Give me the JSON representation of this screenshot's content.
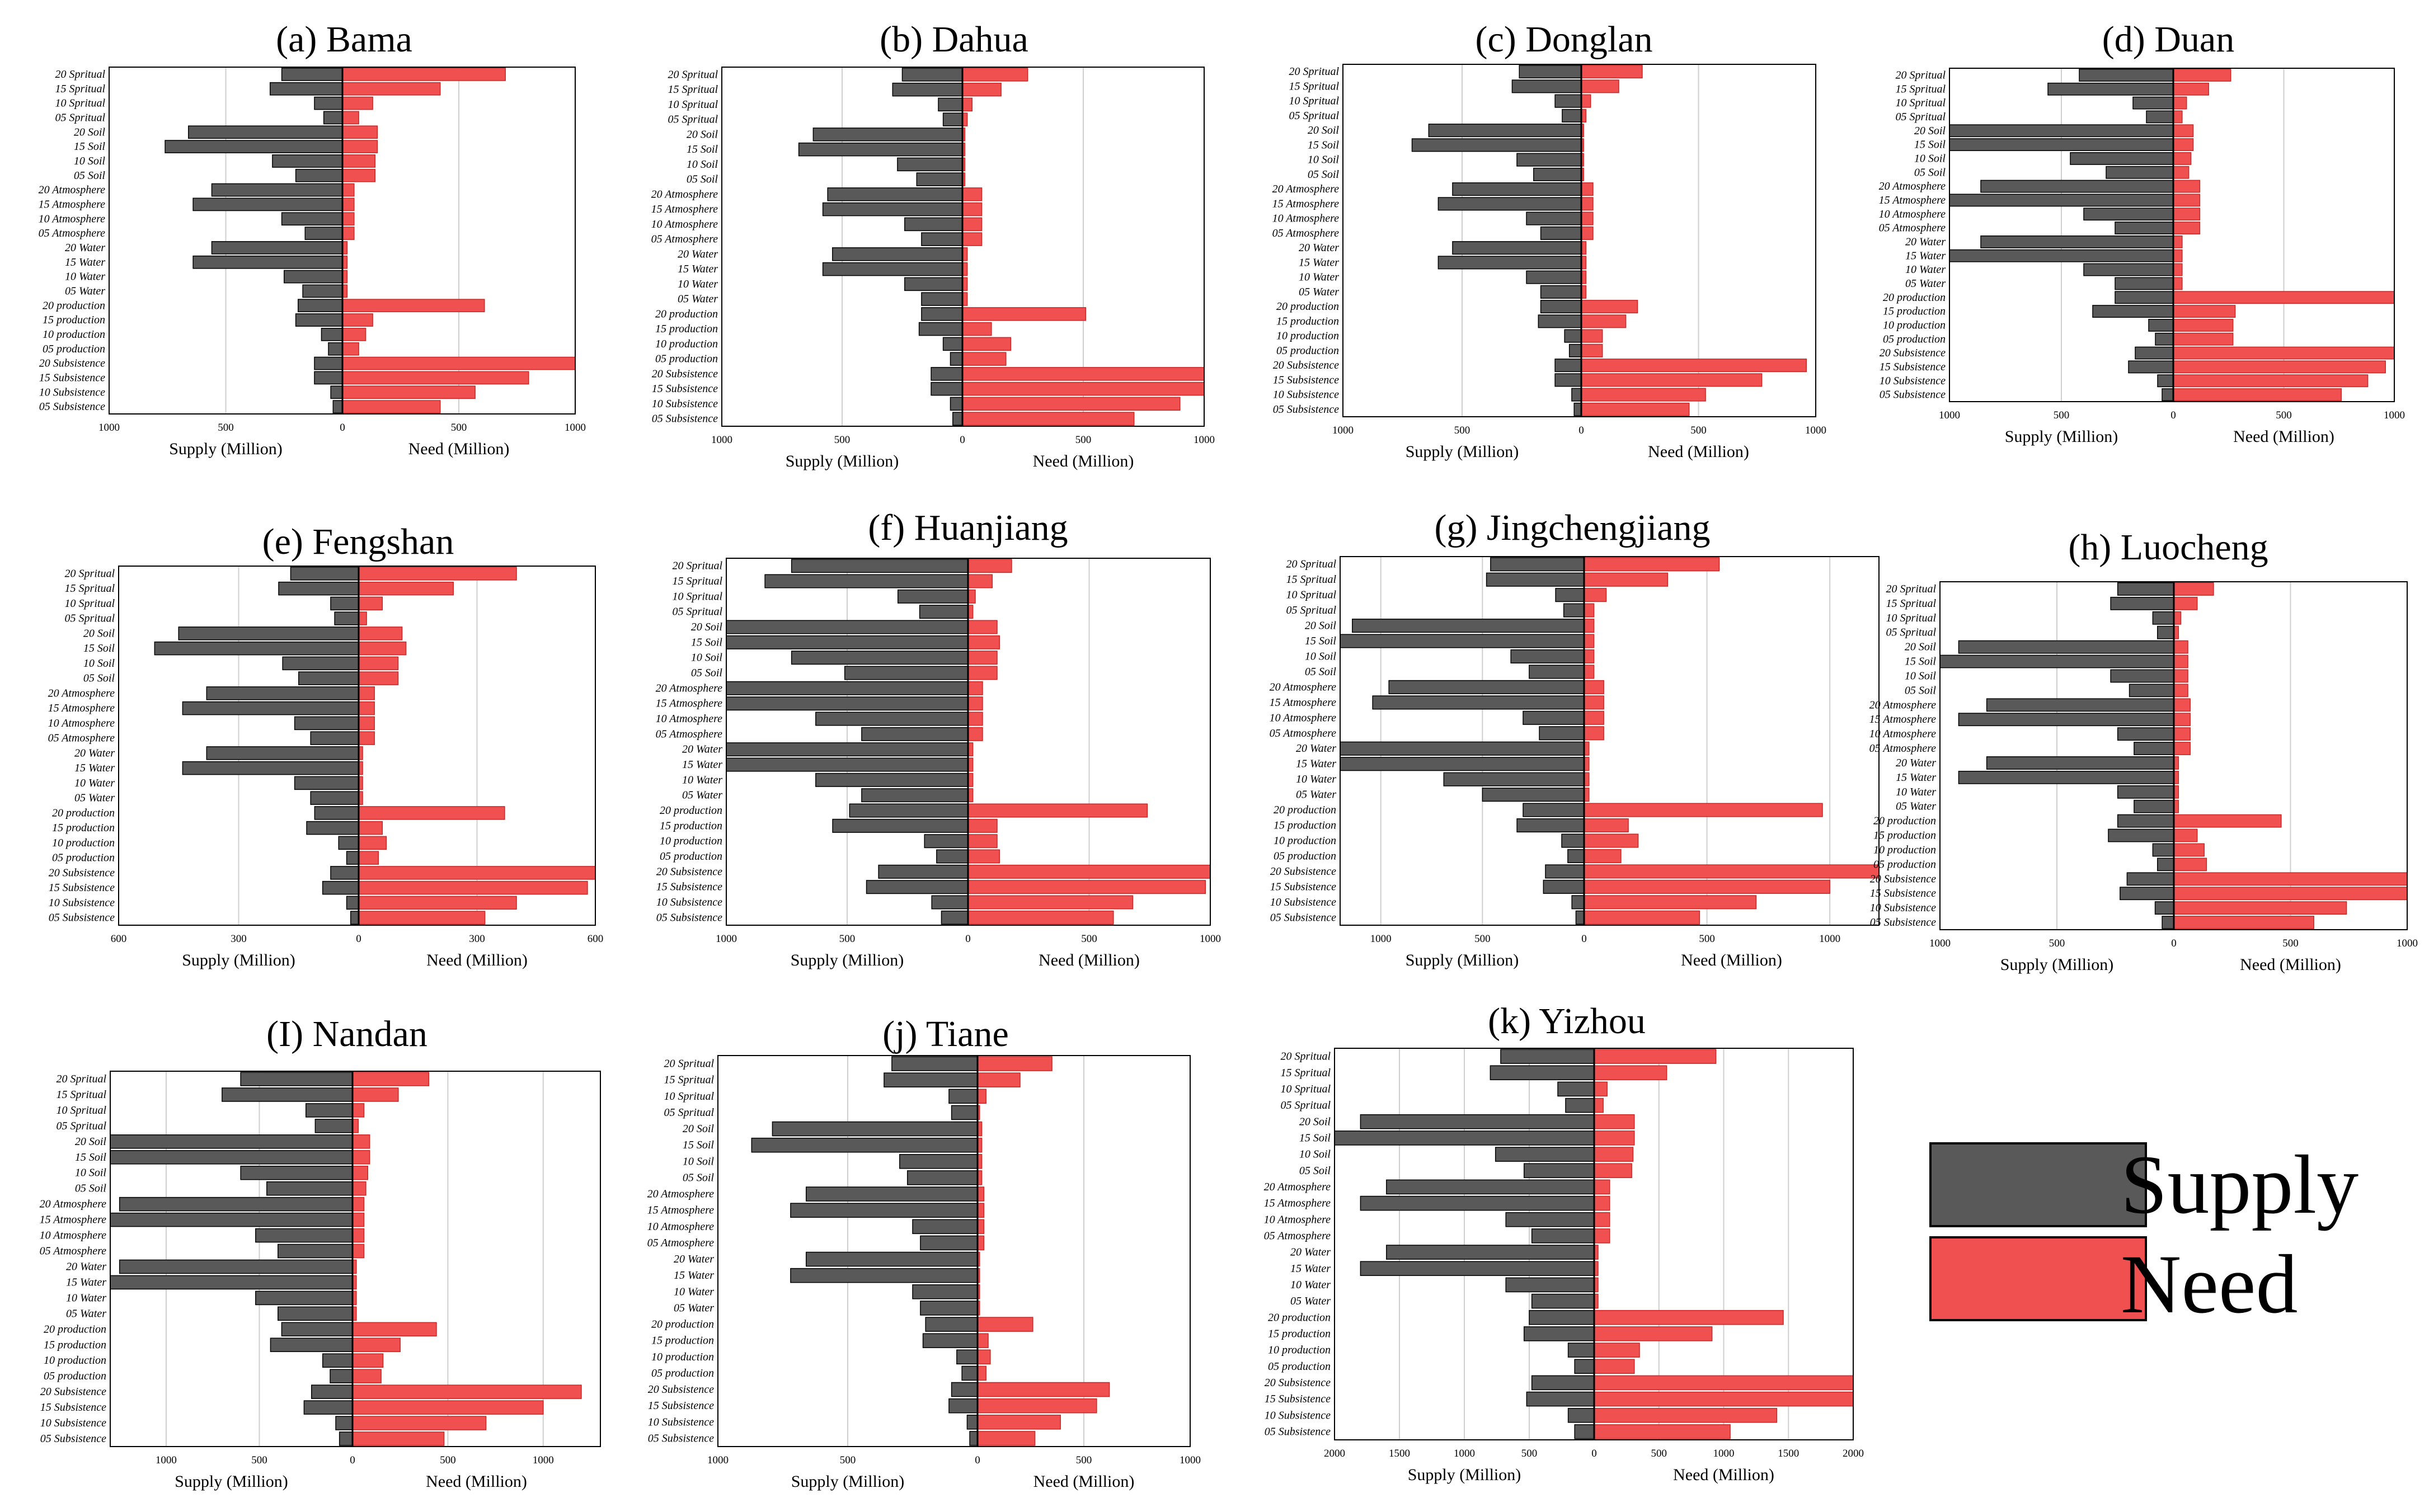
{
  "categories": [
    "20 Spritual",
    "15 Spritual",
    "10 Spritual",
    "05 Spritual",
    "20 Soil",
    "15 Soil",
    "10 Soil",
    "05 Soil",
    "20 Atmosphere",
    "15 Atmosphere",
    "10 Atmosphere",
    "05 Atmosphere",
    "20 Water",
    "15 Water",
    "10 Water",
    "05 Water",
    "20 production",
    "15 production",
    "10 production",
    "05 production",
    "20 Subsistence",
    "15 Subsistence",
    "10 Subsistence",
    "05 Subsistence"
  ],
  "legend": {
    "supply_label": "Supply",
    "need_label": "Need",
    "supply_color": "#595959",
    "need_color": "#f05050"
  },
  "chart_data": [
    {
      "type": "bar",
      "orientation": "horizontal-diverging",
      "title": "(a) Bama",
      "xlabel_left": "Supply (Million)",
      "xlabel_right": "Need (Million)",
      "max": 1000,
      "ticks": [
        1000,
        500,
        0,
        500,
        1000
      ],
      "series": [
        {
          "name": "Supply",
          "values": [
            260,
            310,
            120,
            80,
            660,
            760,
            300,
            200,
            560,
            640,
            260,
            160,
            560,
            640,
            250,
            170,
            190,
            200,
            90,
            60,
            120,
            120,
            50,
            40
          ]
        },
        {
          "name": "Need",
          "values": [
            700,
            420,
            130,
            70,
            150,
            150,
            140,
            140,
            50,
            50,
            50,
            50,
            20,
            20,
            20,
            20,
            610,
            130,
            100,
            70,
            1000,
            800,
            570,
            420
          ]
        }
      ]
    },
    {
      "type": "bar",
      "orientation": "horizontal-diverging",
      "title": "(b) Dahua",
      "xlabel_left": "Supply (Million)",
      "xlabel_right": "Need (Million)",
      "max": 1000,
      "ticks": [
        1000,
        500,
        0,
        500,
        1000
      ],
      "series": [
        {
          "name": "Supply",
          "values": [
            250,
            290,
            100,
            80,
            620,
            680,
            270,
            190,
            560,
            580,
            240,
            170,
            540,
            580,
            240,
            170,
            170,
            180,
            80,
            50,
            130,
            130,
            50,
            40
          ]
        },
        {
          "name": "Need",
          "values": [
            270,
            160,
            40,
            20,
            10,
            10,
            10,
            10,
            80,
            80,
            80,
            80,
            20,
            20,
            20,
            20,
            510,
            120,
            200,
            180,
            1000,
            1000,
            900,
            710
          ]
        }
      ]
    },
    {
      "type": "bar",
      "orientation": "horizontal-diverging",
      "title": "(c) Donglan",
      "xlabel_left": "Supply (Million)",
      "xlabel_right": "Need (Million)",
      "max": 1000,
      "ticks": [
        1000,
        500,
        0,
        500,
        1000
      ],
      "series": [
        {
          "name": "Supply",
          "values": [
            260,
            290,
            110,
            80,
            640,
            710,
            270,
            200,
            540,
            600,
            230,
            170,
            540,
            600,
            230,
            170,
            170,
            180,
            70,
            50,
            110,
            110,
            40,
            30
          ]
        },
        {
          "name": "Need",
          "values": [
            260,
            160,
            40,
            20,
            10,
            10,
            10,
            10,
            50,
            50,
            50,
            50,
            20,
            20,
            20,
            20,
            240,
            190,
            90,
            90,
            960,
            770,
            530,
            460
          ]
        }
      ]
    },
    {
      "type": "bar",
      "orientation": "horizontal-diverging",
      "title": "(d) Duan",
      "xlabel_left": "Supply (Million)",
      "xlabel_right": "Need (Million)",
      "max": 1000,
      "ticks": [
        1000,
        500,
        0,
        500,
        1000
      ],
      "series": [
        {
          "name": "Supply",
          "values": [
            420,
            560,
            180,
            120,
            1000,
            1000,
            460,
            300,
            860,
            1000,
            400,
            260,
            860,
            1000,
            400,
            260,
            260,
            360,
            110,
            80,
            170,
            200,
            70,
            50
          ]
        },
        {
          "name": "Need",
          "values": [
            260,
            160,
            60,
            40,
            90,
            90,
            80,
            70,
            120,
            120,
            120,
            120,
            40,
            40,
            40,
            40,
            1000,
            280,
            270,
            270,
            1000,
            960,
            880,
            760
          ]
        }
      ]
    },
    {
      "type": "bar",
      "orientation": "horizontal-diverging",
      "title": "(e) Fengshan",
      "xlabel_left": "Supply (Million)",
      "xlabel_right": "Need (Million)",
      "max": 600,
      "ticks": [
        600,
        300,
        0,
        300,
        600
      ],
      "series": [
        {
          "name": "Supply",
          "values": [
            170,
            200,
            70,
            60,
            450,
            510,
            190,
            150,
            380,
            440,
            160,
            120,
            380,
            440,
            160,
            120,
            110,
            130,
            50,
            30,
            70,
            90,
            30,
            20
          ]
        },
        {
          "name": "Need",
          "values": [
            400,
            240,
            60,
            20,
            110,
            120,
            100,
            100,
            40,
            40,
            40,
            40,
            10,
            10,
            10,
            10,
            370,
            60,
            70,
            50,
            600,
            580,
            400,
            320
          ]
        }
      ]
    },
    {
      "type": "bar",
      "orientation": "horizontal-diverging",
      "title": "(f) Huanjiang",
      "xlabel_left": "Supply (Million)",
      "xlabel_right": "Need (Million)",
      "max": 1000,
      "ticks": [
        1000,
        500,
        0,
        500,
        1000
      ],
      "series": [
        {
          "name": "Supply",
          "values": [
            730,
            840,
            290,
            200,
            1000,
            1000,
            730,
            510,
            1000,
            1000,
            630,
            440,
            1000,
            1000,
            630,
            440,
            490,
            560,
            180,
            130,
            370,
            420,
            150,
            110
          ]
        },
        {
          "name": "Need",
          "values": [
            180,
            100,
            30,
            20,
            120,
            130,
            120,
            120,
            60,
            60,
            60,
            60,
            20,
            20,
            20,
            20,
            740,
            120,
            120,
            130,
            1000,
            980,
            680,
            600
          ]
        }
      ]
    },
    {
      "type": "bar",
      "orientation": "horizontal-diverging",
      "title": "(g) Jingchengjiang",
      "xlabel_left": "Supply (Million)",
      "xlabel_right": "Need (Million)",
      "max": 1200,
      "ticks": [
        1000,
        500,
        0,
        500,
        1000
      ],
      "series": [
        {
          "name": "Supply",
          "values": [
            460,
            480,
            140,
            100,
            1140,
            1220,
            360,
            270,
            960,
            1040,
            300,
            220,
            1200,
            1200,
            690,
            500,
            300,
            330,
            110,
            80,
            190,
            200,
            60,
            40
          ]
        },
        {
          "name": "Need",
          "values": [
            550,
            340,
            90,
            40,
            40,
            40,
            40,
            40,
            80,
            80,
            80,
            80,
            20,
            20,
            20,
            20,
            970,
            180,
            220,
            150,
            1200,
            1000,
            700,
            470
          ]
        }
      ]
    },
    {
      "type": "bar",
      "orientation": "horizontal-diverging",
      "title": "(h) Luocheng",
      "xlabel_left": "Supply (Million)",
      "xlabel_right": "Need (Million)",
      "max": 1000,
      "ticks": [
        1000,
        500,
        0,
        500,
        1000
      ],
      "series": [
        {
          "name": "Supply",
          "values": [
            240,
            270,
            90,
            70,
            920,
            1000,
            270,
            190,
            800,
            920,
            240,
            170,
            800,
            920,
            240,
            170,
            240,
            280,
            90,
            70,
            200,
            230,
            80,
            50
          ]
        },
        {
          "name": "Need",
          "values": [
            170,
            100,
            30,
            20,
            60,
            60,
            60,
            60,
            70,
            70,
            70,
            70,
            20,
            20,
            20,
            20,
            460,
            100,
            130,
            140,
            1000,
            1000,
            740,
            600
          ]
        }
      ]
    },
    {
      "type": "bar",
      "orientation": "horizontal-diverging",
      "title": "(I) Nandan",
      "xlabel_left": "Supply (Million)",
      "xlabel_right": "Need (Million)",
      "max": 1300,
      "ticks": [
        1000,
        500,
        0,
        500,
        1000
      ],
      "series": [
        {
          "name": "Supply",
          "values": [
            600,
            700,
            250,
            200,
            1300,
            1300,
            600,
            460,
            1250,
            1300,
            520,
            400,
            1250,
            1300,
            520,
            400,
            380,
            440,
            160,
            120,
            220,
            260,
            90,
            70
          ]
        },
        {
          "name": "Need",
          "values": [
            400,
            240,
            60,
            30,
            90,
            90,
            80,
            70,
            60,
            60,
            60,
            60,
            20,
            20,
            20,
            20,
            440,
            250,
            160,
            150,
            1200,
            1000,
            700,
            480
          ]
        }
      ]
    },
    {
      "type": "bar",
      "orientation": "horizontal-diverging",
      "title": "(j) Tiane",
      "xlabel_left": "Supply (Million)",
      "xlabel_right": "Need (Million)",
      "max": 1000,
      "ticks": [
        1000,
        500,
        0,
        500,
        1000
      ],
      "series": [
        {
          "name": "Supply",
          "values": [
            330,
            360,
            110,
            100,
            790,
            870,
            300,
            270,
            660,
            720,
            250,
            220,
            660,
            720,
            250,
            220,
            200,
            210,
            80,
            60,
            100,
            110,
            40,
            30
          ]
        },
        {
          "name": "Need",
          "values": [
            350,
            200,
            40,
            10,
            20,
            20,
            20,
            20,
            30,
            30,
            30,
            30,
            10,
            10,
            10,
            10,
            260,
            50,
            60,
            40,
            620,
            560,
            390,
            270
          ]
        }
      ]
    },
    {
      "type": "bar",
      "orientation": "horizontal-diverging",
      "title": "(k) Yizhou",
      "xlabel_left": "Supply (Million)",
      "xlabel_right": "Need (Million)",
      "max": 2000,
      "ticks": [
        2000,
        1500,
        1000,
        500,
        0,
        500,
        1000,
        1500,
        2000
      ],
      "series": [
        {
          "name": "Supply",
          "values": [
            720,
            800,
            280,
            220,
            1800,
            2000,
            760,
            540,
            1600,
            1800,
            680,
            480,
            1600,
            1800,
            680,
            480,
            500,
            540,
            200,
            150,
            480,
            520,
            200,
            150
          ]
        },
        {
          "name": "Need",
          "values": [
            940,
            560,
            100,
            70,
            310,
            310,
            300,
            290,
            120,
            120,
            120,
            120,
            30,
            30,
            30,
            30,
            1460,
            910,
            350,
            310,
            2000,
            2000,
            1410,
            1050
          ]
        }
      ]
    }
  ]
}
